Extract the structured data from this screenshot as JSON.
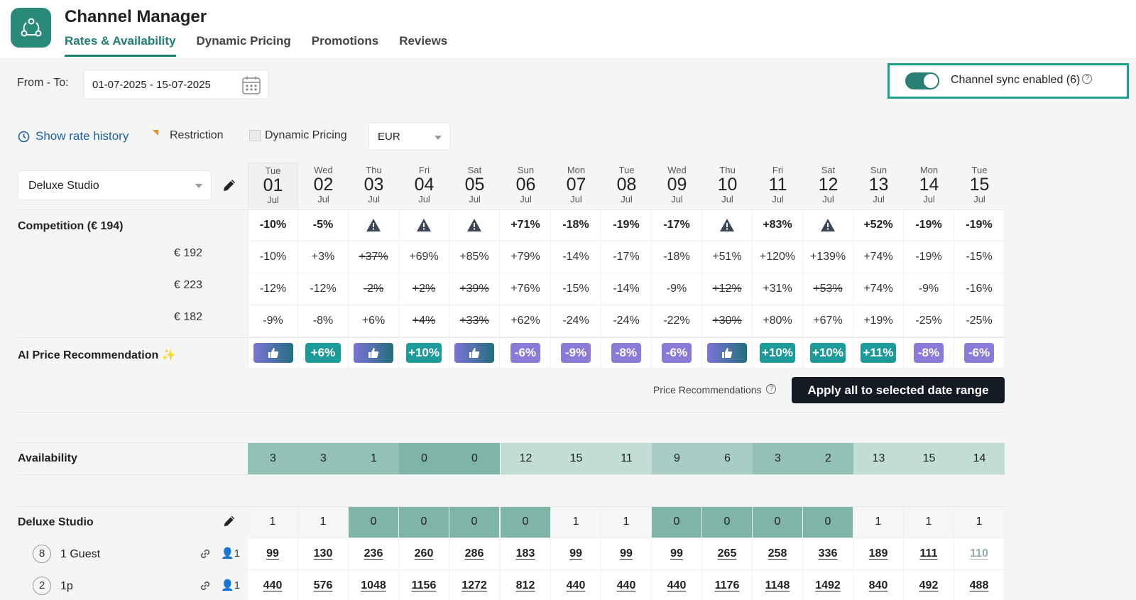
{
  "app": {
    "title": "Channel Manager"
  },
  "tabs": [
    "Rates & Availability",
    "Dynamic Pricing",
    "Promotions",
    "Reviews"
  ],
  "date_range": {
    "label": "From - To:",
    "value": "01-07-2025 - 15-07-2025"
  },
  "sync": {
    "label": "Channel sync enabled (6)",
    "enabled": true
  },
  "toolbar": {
    "rate_history": "Show rate history",
    "restriction": "Restriction",
    "dynamic_pricing": "Dynamic Pricing",
    "currency": "EUR"
  },
  "room_select": "Deluxe Studio",
  "days": [
    {
      "wd": "Tue",
      "d": "01",
      "m": "Jul"
    },
    {
      "wd": "Wed",
      "d": "02",
      "m": "Jul"
    },
    {
      "wd": "Thu",
      "d": "03",
      "m": "Jul"
    },
    {
      "wd": "Fri",
      "d": "04",
      "m": "Jul"
    },
    {
      "wd": "Sat",
      "d": "05",
      "m": "Jul"
    },
    {
      "wd": "Sun",
      "d": "06",
      "m": "Jul"
    },
    {
      "wd": "Mon",
      "d": "07",
      "m": "Jul"
    },
    {
      "wd": "Tue",
      "d": "08",
      "m": "Jul"
    },
    {
      "wd": "Wed",
      "d": "09",
      "m": "Jul"
    },
    {
      "wd": "Thu",
      "d": "10",
      "m": "Jul"
    },
    {
      "wd": "Fri",
      "d": "11",
      "m": "Jul"
    },
    {
      "wd": "Sat",
      "d": "12",
      "m": "Jul"
    },
    {
      "wd": "Sun",
      "d": "13",
      "m": "Jul"
    },
    {
      "wd": "Mon",
      "d": "14",
      "m": "Jul"
    },
    {
      "wd": "Tue",
      "d": "15",
      "m": "Jul"
    }
  ],
  "competition": {
    "label": "Competition (€ 194)",
    "summary": [
      "-10%",
      "-5%",
      "warn",
      "warn",
      "warn",
      "+71%",
      "-18%",
      "-19%",
      "-17%",
      "warn",
      "+83%",
      "warn",
      "+52%",
      "-19%",
      "-19%"
    ],
    "competitors": [
      {
        "price": "€ 192",
        "values": [
          {
            "v": "-10%"
          },
          {
            "v": "+3%"
          },
          {
            "v": "+37%",
            "strike": true
          },
          {
            "v": "+69%"
          },
          {
            "v": "+85%"
          },
          {
            "v": "+79%"
          },
          {
            "v": "-14%"
          },
          {
            "v": "-17%"
          },
          {
            "v": "-18%"
          },
          {
            "v": "+51%"
          },
          {
            "v": "+120%"
          },
          {
            "v": "+139%"
          },
          {
            "v": "+74%"
          },
          {
            "v": "-19%"
          },
          {
            "v": "-15%"
          }
        ]
      },
      {
        "price": "€ 223",
        "values": [
          {
            "v": "-12%"
          },
          {
            "v": "-12%"
          },
          {
            "v": "-2%",
            "strike": true
          },
          {
            "v": "+2%",
            "strike": true
          },
          {
            "v": "+39%",
            "strike": true
          },
          {
            "v": "+76%"
          },
          {
            "v": "-15%"
          },
          {
            "v": "-14%"
          },
          {
            "v": "-9%"
          },
          {
            "v": "+12%",
            "strike": true
          },
          {
            "v": "+31%"
          },
          {
            "v": "+53%",
            "strike": true
          },
          {
            "v": "+74%"
          },
          {
            "v": "-9%"
          },
          {
            "v": "-16%"
          }
        ]
      },
      {
        "price": "€ 182",
        "values": [
          {
            "v": "-9%"
          },
          {
            "v": "-8%"
          },
          {
            "v": "+6%"
          },
          {
            "v": "+4%",
            "strike": true
          },
          {
            "v": "+33%",
            "strike": true
          },
          {
            "v": "+62%"
          },
          {
            "v": "-24%"
          },
          {
            "v": "-24%"
          },
          {
            "v": "-22%"
          },
          {
            "v": "+30%",
            "strike": true
          },
          {
            "v": "+80%"
          },
          {
            "v": "+67%"
          },
          {
            "v": "+19%"
          },
          {
            "v": "-25%"
          },
          {
            "v": "-25%"
          }
        ]
      }
    ]
  },
  "ai_recommendation": {
    "label": "AI Price Recommendation",
    "values": [
      "up",
      "+6%",
      "up",
      "+10%",
      "up",
      "-6%",
      "-9%",
      "-8%",
      "-6%",
      "up",
      "+10%",
      "+10%",
      "+11%",
      "-8%",
      "-6%"
    ]
  },
  "price_recommendations_label": "Price Recommendations",
  "apply_button": "Apply all to selected date range",
  "availability": {
    "label": "Availability",
    "values": [
      "3",
      "3",
      "1",
      "0",
      "0",
      "12",
      "15",
      "11",
      "9",
      "6",
      "3",
      "2",
      "13",
      "15",
      "14"
    ]
  },
  "room": {
    "name": "Deluxe Studio",
    "units": [
      "1",
      "1",
      "0",
      "0",
      "0",
      "0",
      "1",
      "1",
      "0",
      "0",
      "0",
      "0",
      "1",
      "1",
      "1"
    ],
    "rates": [
      {
        "badge": "8",
        "name": "1 Guest",
        "guests": "1",
        "prices": [
          "99",
          "130",
          "236",
          "260",
          "286",
          "183",
          "99",
          "99",
          "99",
          "265",
          "258",
          "336",
          "189",
          "111",
          "110"
        ]
      },
      {
        "badge": "2",
        "name": "1p",
        "guests": "1",
        "prices": [
          "440",
          "576",
          "1048",
          "1156",
          "1272",
          "812",
          "440",
          "440",
          "440",
          "1176",
          "1148",
          "1492",
          "840",
          "492",
          "488"
        ]
      }
    ]
  },
  "colors": {
    "accent": "#1e7f72",
    "sync_border": "#1aa38a",
    "rec_positive": "#1d9a9a",
    "rec_negative": "#8c7ad8",
    "apply_bg": "#141a24"
  }
}
